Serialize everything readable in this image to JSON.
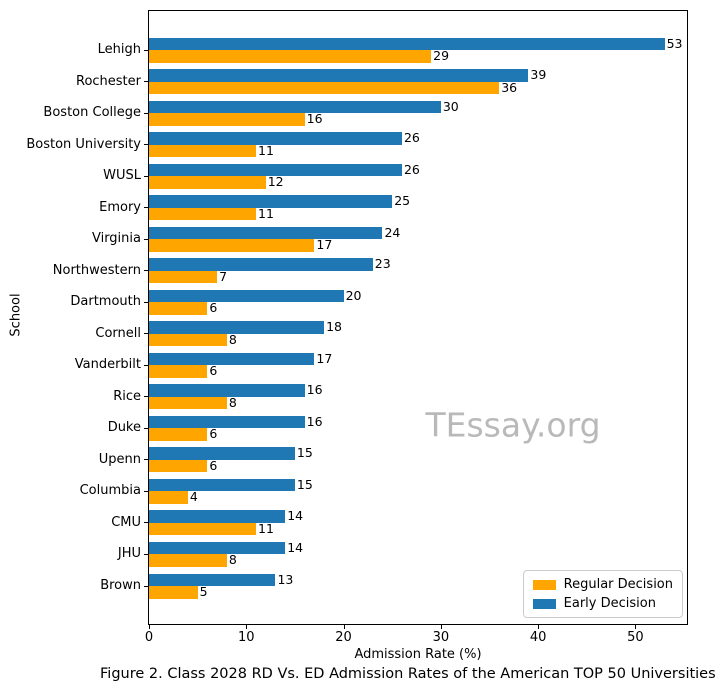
{
  "chart_data": {
    "type": "bar",
    "orientation": "horizontal",
    "title": "Figure 2. Class 2028 RD Vs. ED Admission Rates of the American TOP 50 Universities",
    "xlabel": "Admission Rate (%)",
    "ylabel": "School",
    "categories": [
      "Lehigh",
      "Rochester",
      "Boston College",
      "Boston University",
      "WUSL",
      "Emory",
      "Virginia",
      "Northwestern",
      "Dartmouth",
      "Cornell",
      "Vanderbilt",
      "Rice",
      "Duke",
      "Upenn",
      "Columbia",
      "CMU",
      "JHU",
      "Brown"
    ],
    "series": [
      {
        "name": "Early Decision",
        "color": "#1f77b4",
        "values": [
          53,
          39,
          30,
          26,
          26,
          25,
          24,
          23,
          20,
          18,
          17,
          16,
          16,
          15,
          15,
          14,
          14,
          13
        ]
      },
      {
        "name": "Regular Decision",
        "color": "#ffa500",
        "values": [
          29,
          36,
          16,
          11,
          12,
          11,
          17,
          7,
          6,
          8,
          6,
          8,
          6,
          6,
          4,
          11,
          8,
          5
        ]
      }
    ],
    "legend": {
      "position": "lower right",
      "order": [
        "Regular Decision",
        "Early Decision"
      ]
    },
    "xlim": [
      0,
      55.3
    ],
    "xticks": [
      0,
      10,
      20,
      30,
      40,
      50
    ],
    "grid": false,
    "bar_labels": true,
    "watermark": "TEssay.org"
  }
}
